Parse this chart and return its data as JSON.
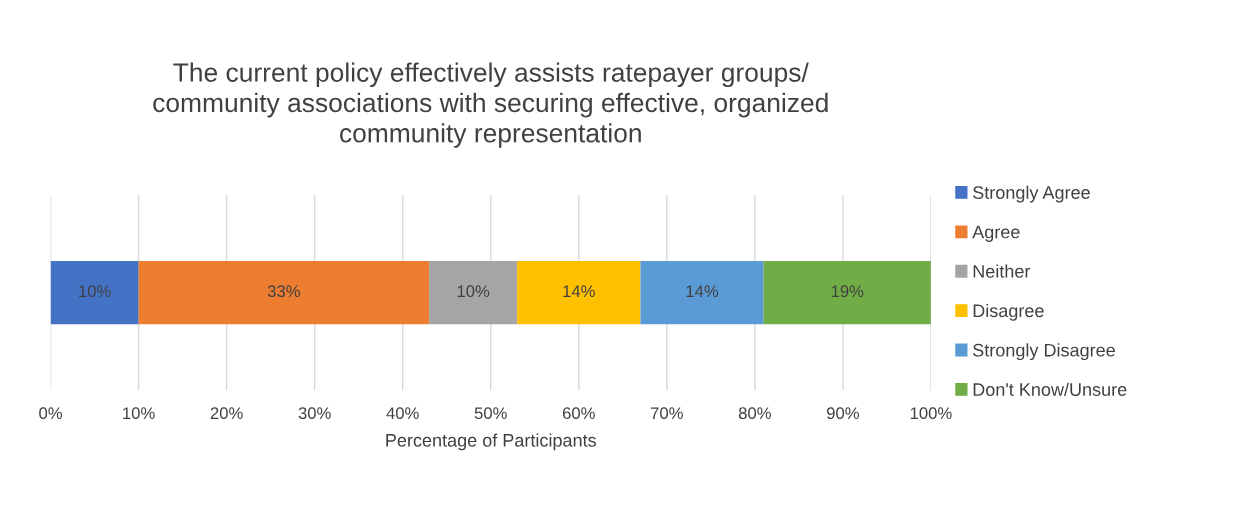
{
  "chart_data": {
    "type": "bar",
    "orientation": "horizontal",
    "stacked": true,
    "title": "The current policy effectively assists ratepayer groups/\ncommunity associations with securing effective, organized\ncommunity representation",
    "xlabel": "Percentage of Participants",
    "categories": [
      null
    ],
    "series": [
      {
        "name": "Strongly Agree",
        "color": "#4472c4",
        "values": [
          10
        ],
        "value_labels": [
          "10%"
        ]
      },
      {
        "name": "Agree",
        "color": "#ed7d31",
        "values": [
          33
        ],
        "value_labels": [
          "33%"
        ]
      },
      {
        "name": "Neither",
        "color": "#a5a5a5",
        "values": [
          10
        ],
        "value_labels": [
          "10%"
        ]
      },
      {
        "name": "Disagree",
        "color": "#ffc000",
        "values": [
          14
        ],
        "value_labels": [
          "14%"
        ]
      },
      {
        "name": "Strongly Disagree",
        "color": "#5b9bd5",
        "values": [
          14
        ],
        "value_labels": [
          "14%"
        ]
      },
      {
        "name": "Don't Know/Unsure",
        "color": "#70ad47",
        "values": [
          19
        ],
        "value_labels": [
          "19%"
        ]
      }
    ],
    "xlim": [
      0,
      100
    ],
    "xticks": [
      {
        "value": 0,
        "label": "0%"
      },
      {
        "value": 10,
        "label": "10%"
      },
      {
        "value": 20,
        "label": "20%"
      },
      {
        "value": 30,
        "label": "30%"
      },
      {
        "value": 40,
        "label": "40%"
      },
      {
        "value": 50,
        "label": "50%"
      },
      {
        "value": 60,
        "label": "60%"
      },
      {
        "value": 70,
        "label": "70%"
      },
      {
        "value": 80,
        "label": "80%"
      },
      {
        "value": 90,
        "label": "90%"
      },
      {
        "value": 100,
        "label": "100%"
      }
    ],
    "grid": "x",
    "legend": "right",
    "tick_labels": "x"
  }
}
